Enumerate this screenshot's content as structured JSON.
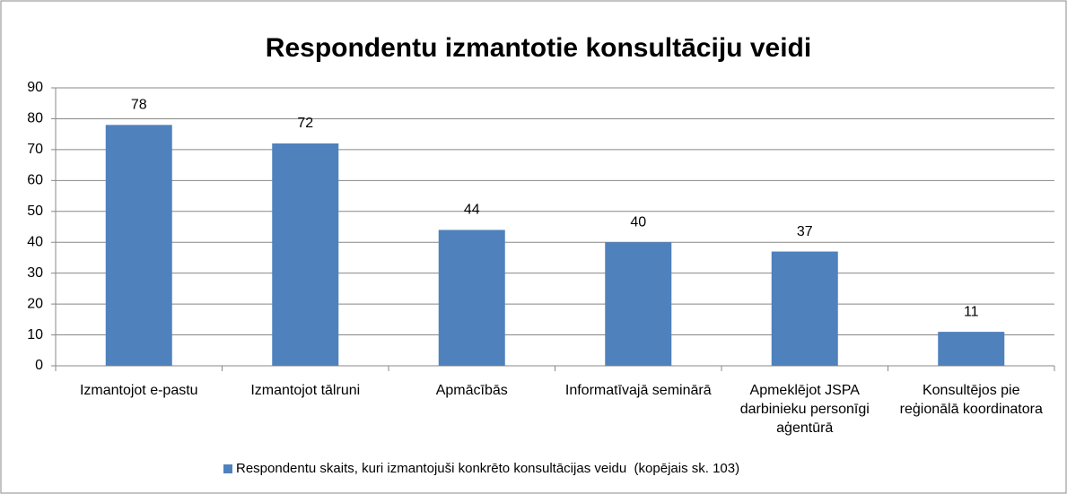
{
  "chart_data": {
    "type": "bar",
    "title": "Respondentu izmantotie konsultāciju veidi",
    "categories": [
      "Izmantojot e-pastu",
      "Izmantojot tālruni",
      "Apmācībās",
      "Informatīvajā seminārā",
      "Apmeklējot JSPA darbinieku personīgi aģentūrā",
      "Konsultējos pie reģionālā koordinatora"
    ],
    "series": [
      {
        "name": "Respondentu skaits, kuri izmantojuši konkrēto konsultācijas veidu  (kopējais sk. 103)",
        "color": "#4f81bd",
        "values": [
          78,
          72,
          44,
          40,
          37,
          11
        ]
      }
    ],
    "ylim": [
      0,
      90
    ],
    "yticks": [
      0,
      10,
      20,
      30,
      40,
      50,
      60,
      70,
      80,
      90
    ],
    "grid": true,
    "legend": "bottom"
  }
}
